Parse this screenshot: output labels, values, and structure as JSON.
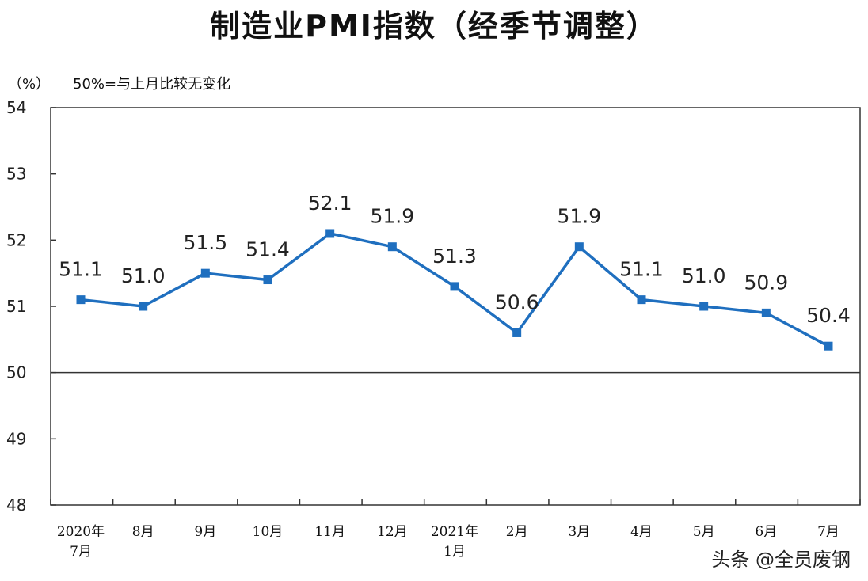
{
  "chart_data": {
    "type": "line",
    "title": "制造业PMI指数（经季节调整）",
    "unit_label": "（%）",
    "annotation": "50%=与上月比较无变化",
    "categories": [
      [
        "2020年",
        "7月"
      ],
      [
        "8月"
      ],
      [
        "9月"
      ],
      [
        "10月"
      ],
      [
        "11月"
      ],
      [
        "12月"
      ],
      [
        "2021年",
        "1月"
      ],
      [
        "2月"
      ],
      [
        "3月"
      ],
      [
        "4月"
      ],
      [
        "5月"
      ],
      [
        "6月"
      ],
      [
        "7月"
      ]
    ],
    "series": [
      {
        "values": [
          51.1,
          51.0,
          51.5,
          51.4,
          52.1,
          51.9,
          51.3,
          50.6,
          51.9,
          51.1,
          51.0,
          50.9,
          50.4
        ]
      }
    ],
    "data_labels": [
      "51.1",
      "51.0",
      "51.5",
      "51.4",
      "52.1",
      "51.9",
      "51.3",
      "50.6",
      "51.9",
      "51.1",
      "51.0",
      "50.9",
      "50.4"
    ],
    "y_ticks": [
      "54",
      "53",
      "52",
      "51",
      "50",
      "49",
      "48"
    ],
    "ylim": [
      48,
      54
    ],
    "reference_value": 50,
    "grid": false,
    "colors": {
      "line": "#1f6fbf",
      "marker": "#1f6fbf",
      "axis": "#333333"
    }
  },
  "watermark": "头条 @全员废钢"
}
